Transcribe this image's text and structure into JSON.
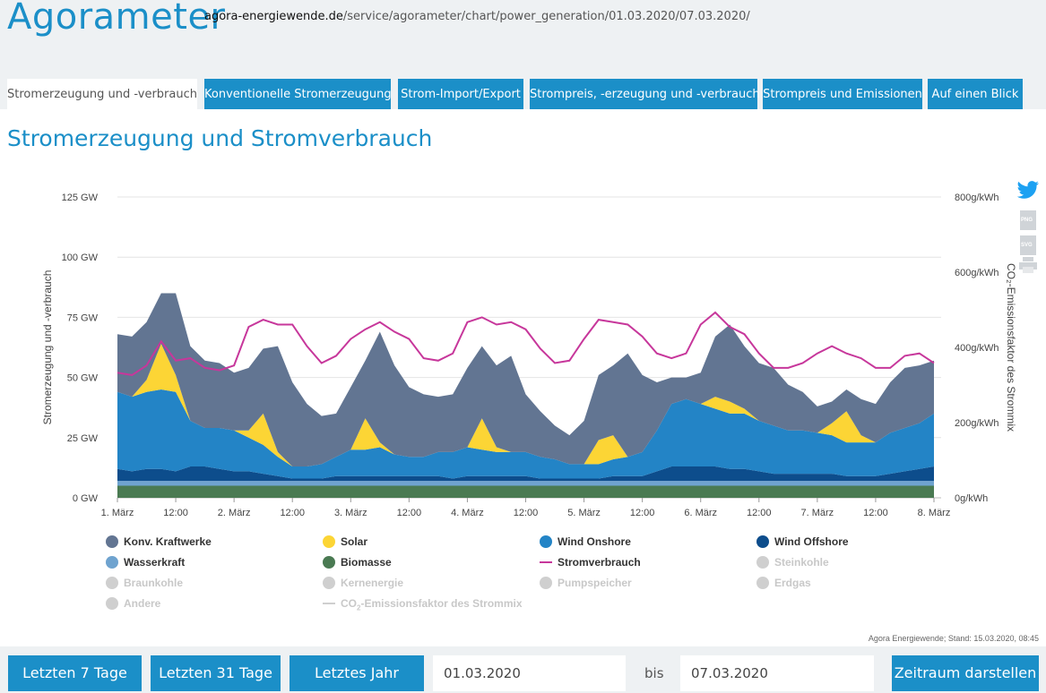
{
  "header": {
    "logo": "Agorameter",
    "url_host": "agora-energiewende.de",
    "url_path": "/service/agorameter/chart/power_generation/01.03.2020/07.03.2020/"
  },
  "tabs": [
    {
      "label": "Stromerzeugung und -verbrauch",
      "active": true
    },
    {
      "label": "Konventionelle Stromerzeugung",
      "active": false
    },
    {
      "label": "Strom-Import/Export",
      "active": false
    },
    {
      "label": "Strompreis, -erzeugung und -verbrauch",
      "active": false
    },
    {
      "label": "Strompreis und Emissionen",
      "active": false
    },
    {
      "label": "Auf einen Blick",
      "active": false
    }
  ],
  "page_title": "Stromerzeugung und Stromverbrauch",
  "side_icons": {
    "png": "PNG",
    "svg": "SVG"
  },
  "colors": {
    "konv": "#627592",
    "solar": "#fcd535",
    "wind_onshore": "#2384c6",
    "wind_offshore": "#0d4d8c",
    "wasserkraft": "#6fa3cf",
    "biomasse": "#4a7a52",
    "stromverbrauch": "#c7379b",
    "inactive": "#cfcfcf",
    "accent": "#1b8fc8"
  },
  "chart_data": {
    "type": "area",
    "ylabel": "Stromerzeugung und -verbrauch",
    "y2label": "CO₂-Emissionsfaktor des Strommix",
    "ylim": [
      0,
      125
    ],
    "y2lim": [
      0,
      800
    ],
    "yticks": [
      "0 GW",
      "25 GW",
      "50 GW",
      "75 GW",
      "100 GW",
      "125 GW"
    ],
    "y2ticks": [
      "0g/kWh",
      "200g/kWh",
      "400g/kWh",
      "600g/kWh",
      "800g/kWh"
    ],
    "xticks": [
      "1. März",
      "12:00",
      "2. März",
      "12:00",
      "3. März",
      "12:00",
      "4. März",
      "12:00",
      "5. März",
      "12:00",
      "6. März",
      "12:00",
      "7. März",
      "12:00",
      "8. März"
    ],
    "x_hours": [
      0,
      3,
      6,
      9,
      12,
      15,
      18,
      21,
      24,
      27,
      30,
      33,
      36,
      39,
      42,
      45,
      48,
      51,
      54,
      57,
      60,
      63,
      66,
      69,
      72,
      75,
      78,
      81,
      84,
      87,
      90,
      93,
      96,
      99,
      102,
      105,
      108,
      111,
      114,
      117,
      120,
      123,
      126,
      129,
      132,
      135,
      138,
      141,
      144,
      147,
      150,
      153,
      156,
      159,
      162,
      165,
      168
    ],
    "series": [
      {
        "name": "Biomasse",
        "values": [
          5,
          5,
          5,
          5,
          5,
          5,
          5,
          5,
          5,
          5,
          5,
          5,
          5,
          5,
          5,
          5,
          5,
          5,
          5,
          5,
          5,
          5,
          5,
          5,
          5,
          5,
          5,
          5,
          5,
          5,
          5,
          5,
          5,
          5,
          5,
          5,
          5,
          5,
          5,
          5,
          5,
          5,
          5,
          5,
          5,
          5,
          5,
          5,
          5,
          5,
          5,
          5,
          5,
          5,
          5,
          5,
          5
        ]
      },
      {
        "name": "Wasserkraft",
        "values": [
          2,
          2,
          2,
          2,
          2,
          2,
          2,
          2,
          2,
          2,
          2,
          2,
          2,
          2,
          2,
          2,
          2,
          2,
          2,
          2,
          2,
          2,
          2,
          2,
          2,
          2,
          2,
          2,
          2,
          2,
          2,
          2,
          2,
          2,
          2,
          2,
          2,
          2,
          2,
          2,
          2,
          2,
          2,
          2,
          2,
          2,
          2,
          2,
          2,
          2,
          2,
          2,
          2,
          2,
          2,
          2,
          2
        ]
      },
      {
        "name": "Wind Offshore",
        "values": [
          5,
          4,
          5,
          5,
          4,
          6,
          6,
          5,
          4,
          4,
          3,
          2,
          1,
          1,
          1,
          2,
          2,
          2,
          2,
          2,
          2,
          2,
          2,
          1,
          2,
          2,
          2,
          2,
          2,
          1,
          1,
          1,
          1,
          1,
          2,
          2,
          2,
          4,
          6,
          6,
          6,
          6,
          5,
          5,
          4,
          3,
          3,
          3,
          3,
          3,
          2,
          2,
          2,
          3,
          4,
          5,
          6
        ]
      },
      {
        "name": "Wind Onshore",
        "values": [
          32,
          31,
          32,
          33,
          33,
          19,
          16,
          17,
          17,
          14,
          12,
          8,
          5,
          5,
          6,
          8,
          11,
          11,
          12,
          9,
          8,
          8,
          10,
          11,
          12,
          11,
          10,
          10,
          10,
          9,
          8,
          6,
          6,
          6,
          7,
          8,
          10,
          17,
          26,
          28,
          26,
          24,
          23,
          23,
          21,
          20,
          18,
          18,
          17,
          16,
          14,
          14,
          14,
          17,
          18,
          19,
          22
        ]
      },
      {
        "name": "Solar",
        "values": [
          0,
          0,
          5,
          19,
          7,
          0,
          0,
          0,
          0,
          3,
          13,
          2,
          0,
          0,
          0,
          0,
          0,
          13,
          2,
          0,
          0,
          0,
          0,
          0,
          0,
          13,
          2,
          0,
          0,
          0,
          0,
          0,
          0,
          10,
          10,
          0,
          0,
          0,
          0,
          0,
          0,
          5,
          5,
          2,
          0,
          0,
          0,
          0,
          0,
          5,
          13,
          3,
          0,
          0,
          0,
          0,
          0
        ]
      },
      {
        "name": "Konv. Kraftwerke",
        "values": [
          24,
          25,
          24,
          21,
          34,
          31,
          28,
          27,
          24,
          26,
          27,
          44,
          35,
          26,
          20,
          18,
          26,
          24,
          46,
          37,
          29,
          26,
          23,
          24,
          33,
          30,
          34,
          40,
          24,
          19,
          14,
          12,
          18,
          27,
          29,
          43,
          32,
          20,
          11,
          9,
          13,
          25,
          32,
          26,
          24,
          24,
          19,
          16,
          11,
          9,
          9,
          15,
          16,
          21,
          25,
          24,
          22
        ]
      },
      {
        "name": "Stromverbrauch",
        "values": [
          52,
          51,
          55,
          65,
          57,
          58,
          54,
          53,
          55,
          71,
          74,
          72,
          72,
          63,
          56,
          59,
          66,
          70,
          73,
          69,
          66,
          58,
          57,
          60,
          73,
          75,
          72,
          73,
          70,
          62,
          56,
          57,
          66,
          74,
          73,
          72,
          67,
          60,
          58,
          60,
          72,
          77,
          71,
          68,
          60,
          54,
          54,
          56,
          60,
          63,
          60,
          58,
          54,
          54,
          59,
          60,
          56
        ]
      }
    ],
    "inactive_series": [
      "Steinkohle",
      "Braunkohle",
      "Kernenergie",
      "Pumpspeicher",
      "Erdgas",
      "Andere",
      "CO₂-Emissionsfaktor des Strommix"
    ],
    "stand": "Agora Energiewende; Stand: 15.03.2020, 08:45"
  },
  "legend": [
    {
      "label": "Konv. Kraftwerke",
      "color": "#627592",
      "active": true
    },
    {
      "label": "Solar",
      "color": "#fcd535",
      "active": true
    },
    {
      "label": "Wind Onshore",
      "color": "#2384c6",
      "active": true
    },
    {
      "label": "Wind Offshore",
      "color": "#0d4d8c",
      "active": true
    },
    {
      "label": "Wasserkraft",
      "color": "#6fa3cf",
      "active": true
    },
    {
      "label": "Biomasse",
      "color": "#4a7a52",
      "active": true
    },
    {
      "label": "Stromverbrauch",
      "color": "#c7379b",
      "active": true,
      "line": true
    },
    {
      "label": "Steinkohle",
      "color": "#cfcfcf",
      "active": false
    },
    {
      "label": "Braunkohle",
      "color": "#cfcfcf",
      "active": false
    },
    {
      "label": "Kernenergie",
      "color": "#cfcfcf",
      "active": false
    },
    {
      "label": "Pumpspeicher",
      "color": "#cfcfcf",
      "active": false
    },
    {
      "label": "Erdgas",
      "color": "#cfcfcf",
      "active": false
    },
    {
      "label": "Andere",
      "color": "#cfcfcf",
      "active": false
    },
    {
      "label_pre": "CO",
      "label_sub": "2",
      "label_post": "-Emissionsfaktor des Strommix",
      "color": "#cfcfcf",
      "active": false,
      "line": true
    }
  ],
  "bottom": {
    "btn_7": "Letzten 7 Tage",
    "btn_31": "Letzten 31 Tage",
    "btn_year": "Letztes Jahr",
    "date_from": "01.03.2020",
    "bis": "bis",
    "date_to": "07.03.2020",
    "btn_show": "Zeitraum darstellen"
  }
}
